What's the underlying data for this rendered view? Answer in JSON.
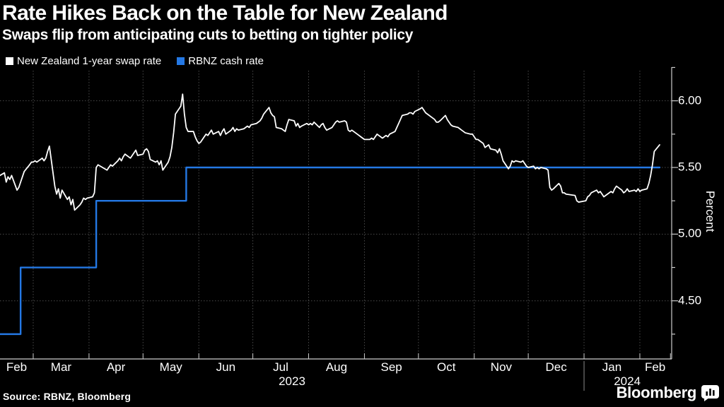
{
  "header": {
    "title": "Rate Hikes Back on the Table for New Zealand",
    "subtitle": "Swaps flip from anticipating cuts to betting on tighter policy"
  },
  "footer": {
    "source": "Source: RBNZ, Bloomberg",
    "brand": "Bloomberg",
    "brand_icon": "bar-chart-bubble-icon"
  },
  "chart_data": {
    "type": "line",
    "title": "Rate Hikes Back on the Table for New Zealand",
    "subtitle": "Swaps flip from anticipating cuts to betting on tighter policy",
    "ylabel": "Percent",
    "xlabel": "",
    "grid": true,
    "legend_position": "top-left",
    "ylim": [
      4.07,
      6.22
    ],
    "y_ticks_major": [
      4.5,
      5.0,
      5.5,
      6.0
    ],
    "y_ticks_minor": [
      4.25,
      4.75,
      5.25,
      5.75,
      6.25
    ],
    "x_range": [
      "2023-02-10",
      "2024-02-18"
    ],
    "x_month_labels": [
      "Feb",
      "Mar",
      "Apr",
      "May",
      "Jun",
      "Jul",
      "Aug",
      "Sep",
      "Oct",
      "Nov",
      "Dec",
      "Jan",
      "Feb"
    ],
    "x_month_starts": [
      "2023-02-10",
      "2023-03-01",
      "2023-04-01",
      "2023-05-01",
      "2023-06-01",
      "2023-07-01",
      "2023-08-01",
      "2023-09-01",
      "2023-10-01",
      "2023-11-01",
      "2023-12-01",
      "2024-01-01",
      "2024-02-01",
      "2024-02-18"
    ],
    "year_separator": "2024-01-01",
    "year_labels": [
      {
        "label": "2023",
        "span": [
          "2023-02-10",
          "2024-01-01"
        ]
      },
      {
        "label": "2024",
        "span": [
          "2024-01-01",
          "2024-02-18"
        ]
      }
    ],
    "colors": {
      "background": "#000000",
      "grid": "#4a4a4a",
      "axis": "#cccccc",
      "year_separator": "#8a8a8a",
      "swap_line": "#ffffff",
      "cash_line": "#2478e4"
    },
    "series": [
      {
        "name": "New Zealand 1-year swap rate",
        "color": "#ffffff",
        "style": "line",
        "points": [
          [
            "2023-02-10",
            5.44
          ],
          [
            "2023-02-13",
            5.46
          ],
          [
            "2023-02-14",
            5.39
          ],
          [
            "2023-02-15",
            5.43
          ],
          [
            "2023-02-16",
            5.41
          ],
          [
            "2023-02-17",
            5.44
          ],
          [
            "2023-02-20",
            5.33
          ],
          [
            "2023-02-21",
            5.35
          ],
          [
            "2023-02-22",
            5.39
          ],
          [
            "2023-02-23",
            5.43
          ],
          [
            "2023-02-24",
            5.47
          ],
          [
            "2023-02-27",
            5.52
          ],
          [
            "2023-02-28",
            5.54
          ],
          [
            "2023-03-01",
            5.54
          ],
          [
            "2023-03-02",
            5.55
          ],
          [
            "2023-03-03",
            5.54
          ],
          [
            "2023-03-06",
            5.57
          ],
          [
            "2023-03-07",
            5.55
          ],
          [
            "2023-03-08",
            5.57
          ],
          [
            "2023-03-09",
            5.62
          ],
          [
            "2023-03-10",
            5.66
          ],
          [
            "2023-03-13",
            5.36
          ],
          [
            "2023-03-14",
            5.3
          ],
          [
            "2023-03-15",
            5.34
          ],
          [
            "2023-03-16",
            5.27
          ],
          [
            "2023-03-17",
            5.33
          ],
          [
            "2023-03-20",
            5.26
          ],
          [
            "2023-03-21",
            5.28
          ],
          [
            "2023-03-22",
            5.22
          ],
          [
            "2023-03-23",
            5.26
          ],
          [
            "2023-03-24",
            5.18
          ],
          [
            "2023-03-27",
            5.22
          ],
          [
            "2023-03-28",
            5.24
          ],
          [
            "2023-03-29",
            5.27
          ],
          [
            "2023-03-30",
            5.26
          ],
          [
            "2023-03-31",
            5.27
          ],
          [
            "2023-04-03",
            5.28
          ],
          [
            "2023-04-04",
            5.31
          ],
          [
            "2023-04-05",
            5.5
          ],
          [
            "2023-04-06",
            5.52
          ],
          [
            "2023-04-11",
            5.48
          ],
          [
            "2023-04-12",
            5.5
          ],
          [
            "2023-04-13",
            5.52
          ],
          [
            "2023-04-14",
            5.51
          ],
          [
            "2023-04-17",
            5.55
          ],
          [
            "2023-04-18",
            5.57
          ],
          [
            "2023-04-19",
            5.55
          ],
          [
            "2023-04-20",
            5.58
          ],
          [
            "2023-04-21",
            5.6
          ],
          [
            "2023-04-24",
            5.57
          ],
          [
            "2023-04-26",
            5.61
          ],
          [
            "2023-04-27",
            5.63
          ],
          [
            "2023-04-28",
            5.59
          ],
          [
            "2023-05-01",
            5.6
          ],
          [
            "2023-05-02",
            5.63
          ],
          [
            "2023-05-03",
            5.64
          ],
          [
            "2023-05-04",
            5.62
          ],
          [
            "2023-05-05",
            5.56
          ],
          [
            "2023-05-08",
            5.54
          ],
          [
            "2023-05-09",
            5.55
          ],
          [
            "2023-05-10",
            5.52
          ],
          [
            "2023-05-11",
            5.55
          ],
          [
            "2023-05-12",
            5.48
          ],
          [
            "2023-05-15",
            5.54
          ],
          [
            "2023-05-16",
            5.58
          ],
          [
            "2023-05-17",
            5.65
          ],
          [
            "2023-05-18",
            5.76
          ],
          [
            "2023-05-19",
            5.9
          ],
          [
            "2023-05-22",
            5.96
          ],
          [
            "2023-05-23",
            6.05
          ],
          [
            "2023-05-24",
            5.9
          ],
          [
            "2023-05-25",
            5.8
          ],
          [
            "2023-05-26",
            5.77
          ],
          [
            "2023-05-29",
            5.77
          ],
          [
            "2023-05-30",
            5.73
          ],
          [
            "2023-05-31",
            5.7
          ],
          [
            "2023-06-01",
            5.68
          ],
          [
            "2023-06-02",
            5.69
          ],
          [
            "2023-06-05",
            5.75
          ],
          [
            "2023-06-06",
            5.74
          ],
          [
            "2023-06-07",
            5.76
          ],
          [
            "2023-06-08",
            5.78
          ],
          [
            "2023-06-09",
            5.75
          ],
          [
            "2023-06-12",
            5.77
          ],
          [
            "2023-06-13",
            5.74
          ],
          [
            "2023-06-14",
            5.77
          ],
          [
            "2023-06-15",
            5.79
          ],
          [
            "2023-06-16",
            5.75
          ],
          [
            "2023-06-19",
            5.78
          ],
          [
            "2023-06-20",
            5.8
          ],
          [
            "2023-06-21",
            5.77
          ],
          [
            "2023-06-22",
            5.79
          ],
          [
            "2023-06-23",
            5.78
          ],
          [
            "2023-06-26",
            5.79
          ],
          [
            "2023-06-27",
            5.8
          ],
          [
            "2023-06-28",
            5.81
          ],
          [
            "2023-06-29",
            5.8
          ],
          [
            "2023-06-30",
            5.82
          ],
          [
            "2023-07-03",
            5.83
          ],
          [
            "2023-07-04",
            5.84
          ],
          [
            "2023-07-05",
            5.85
          ],
          [
            "2023-07-06",
            5.87
          ],
          [
            "2023-07-07",
            5.9
          ],
          [
            "2023-07-10",
            5.95
          ],
          [
            "2023-07-11",
            5.91
          ],
          [
            "2023-07-12",
            5.89
          ],
          [
            "2023-07-13",
            5.88
          ],
          [
            "2023-07-14",
            5.8
          ],
          [
            "2023-07-17",
            5.79
          ],
          [
            "2023-07-18",
            5.78
          ],
          [
            "2023-07-19",
            5.77
          ],
          [
            "2023-07-20",
            5.82
          ],
          [
            "2023-07-21",
            5.86
          ],
          [
            "2023-07-24",
            5.85
          ],
          [
            "2023-07-25",
            5.81
          ],
          [
            "2023-07-26",
            5.83
          ],
          [
            "2023-07-27",
            5.8
          ],
          [
            "2023-07-28",
            5.81
          ],
          [
            "2023-07-31",
            5.83
          ],
          [
            "2023-08-01",
            5.82
          ],
          [
            "2023-08-02",
            5.83
          ],
          [
            "2023-08-03",
            5.82
          ],
          [
            "2023-08-04",
            5.84
          ],
          [
            "2023-08-07",
            5.8
          ],
          [
            "2023-08-08",
            5.82
          ],
          [
            "2023-08-09",
            5.83
          ],
          [
            "2023-08-10",
            5.8
          ],
          [
            "2023-08-11",
            5.78
          ],
          [
            "2023-08-14",
            5.8
          ],
          [
            "2023-08-15",
            5.82
          ],
          [
            "2023-08-16",
            5.84
          ],
          [
            "2023-08-17",
            5.85
          ],
          [
            "2023-08-18",
            5.84
          ],
          [
            "2023-08-21",
            5.85
          ],
          [
            "2023-08-22",
            5.84
          ],
          [
            "2023-08-23",
            5.78
          ],
          [
            "2023-08-24",
            5.77
          ],
          [
            "2023-08-25",
            5.78
          ],
          [
            "2023-08-28",
            5.75
          ],
          [
            "2023-08-29",
            5.74
          ],
          [
            "2023-08-30",
            5.73
          ],
          [
            "2023-08-31",
            5.72
          ],
          [
            "2023-09-01",
            5.71
          ],
          [
            "2023-09-04",
            5.71
          ],
          [
            "2023-09-05",
            5.72
          ],
          [
            "2023-09-06",
            5.71
          ],
          [
            "2023-09-07",
            5.73
          ],
          [
            "2023-09-08",
            5.75
          ],
          [
            "2023-09-11",
            5.72
          ],
          [
            "2023-09-12",
            5.73
          ],
          [
            "2023-09-13",
            5.74
          ],
          [
            "2023-09-14",
            5.73
          ],
          [
            "2023-09-15",
            5.75
          ],
          [
            "2023-09-18",
            5.77
          ],
          [
            "2023-09-19",
            5.8
          ],
          [
            "2023-09-20",
            5.83
          ],
          [
            "2023-09-21",
            5.86
          ],
          [
            "2023-09-22",
            5.89
          ],
          [
            "2023-09-25",
            5.9
          ],
          [
            "2023-09-26",
            5.91
          ],
          [
            "2023-09-27",
            5.91
          ],
          [
            "2023-09-28",
            5.9
          ],
          [
            "2023-09-29",
            5.92
          ],
          [
            "2023-10-02",
            5.94
          ],
          [
            "2023-10-03",
            5.95
          ],
          [
            "2023-10-04",
            5.93
          ],
          [
            "2023-10-05",
            5.91
          ],
          [
            "2023-10-06",
            5.9
          ],
          [
            "2023-10-09",
            5.87
          ],
          [
            "2023-10-10",
            5.86
          ],
          [
            "2023-10-11",
            5.84
          ],
          [
            "2023-10-12",
            5.84
          ],
          [
            "2023-10-13",
            5.85
          ],
          [
            "2023-10-16",
            5.89
          ],
          [
            "2023-10-17",
            5.86
          ],
          [
            "2023-10-18",
            5.84
          ],
          [
            "2023-10-19",
            5.82
          ],
          [
            "2023-10-20",
            5.81
          ],
          [
            "2023-10-23",
            5.8
          ],
          [
            "2023-10-24",
            5.79
          ],
          [
            "2023-10-25",
            5.78
          ],
          [
            "2023-10-26",
            5.77
          ],
          [
            "2023-10-27",
            5.76
          ],
          [
            "2023-10-30",
            5.75
          ],
          [
            "2023-10-31",
            5.75
          ],
          [
            "2023-11-01",
            5.73
          ],
          [
            "2023-11-02",
            5.71
          ],
          [
            "2023-11-03",
            5.71
          ],
          [
            "2023-11-06",
            5.68
          ],
          [
            "2023-11-07",
            5.65
          ],
          [
            "2023-11-08",
            5.66
          ],
          [
            "2023-11-09",
            5.67
          ],
          [
            "2023-11-10",
            5.64
          ],
          [
            "2023-11-13",
            5.63
          ],
          [
            "2023-11-14",
            5.61
          ],
          [
            "2023-11-15",
            5.64
          ],
          [
            "2023-11-16",
            5.6
          ],
          [
            "2023-11-17",
            5.55
          ],
          [
            "2023-11-20",
            5.49
          ],
          [
            "2023-11-21",
            5.51
          ],
          [
            "2023-11-22",
            5.55
          ],
          [
            "2023-11-23",
            5.54
          ],
          [
            "2023-11-24",
            5.55
          ],
          [
            "2023-11-27",
            5.54
          ],
          [
            "2023-11-28",
            5.55
          ],
          [
            "2023-11-29",
            5.53
          ],
          [
            "2023-11-30",
            5.51
          ],
          [
            "2023-12-01",
            5.5
          ],
          [
            "2023-12-04",
            5.51
          ],
          [
            "2023-12-05",
            5.49
          ],
          [
            "2023-12-06",
            5.5
          ],
          [
            "2023-12-07",
            5.49
          ],
          [
            "2023-12-08",
            5.5
          ],
          [
            "2023-12-11",
            5.49
          ],
          [
            "2023-12-12",
            5.48
          ],
          [
            "2023-12-13",
            5.35
          ],
          [
            "2023-12-14",
            5.33
          ],
          [
            "2023-12-15",
            5.34
          ],
          [
            "2023-12-18",
            5.38
          ],
          [
            "2023-12-19",
            5.36
          ],
          [
            "2023-12-20",
            5.31
          ],
          [
            "2023-12-21",
            5.31
          ],
          [
            "2023-12-22",
            5.3
          ],
          [
            "2023-12-27",
            5.29
          ],
          [
            "2023-12-28",
            5.25
          ],
          [
            "2023-12-29",
            5.24
          ],
          [
            "2024-01-02",
            5.25
          ],
          [
            "2024-01-03",
            5.28
          ],
          [
            "2024-01-04",
            5.29
          ],
          [
            "2024-01-05",
            5.31
          ],
          [
            "2024-01-08",
            5.33
          ],
          [
            "2024-01-09",
            5.31
          ],
          [
            "2024-01-10",
            5.32
          ],
          [
            "2024-01-11",
            5.3
          ],
          [
            "2024-01-12",
            5.28
          ],
          [
            "2024-01-15",
            5.31
          ],
          [
            "2024-01-16",
            5.32
          ],
          [
            "2024-01-17",
            5.31
          ],
          [
            "2024-01-18",
            5.34
          ],
          [
            "2024-01-19",
            5.36
          ],
          [
            "2024-01-22",
            5.33
          ],
          [
            "2024-01-23",
            5.31
          ],
          [
            "2024-01-24",
            5.32
          ],
          [
            "2024-01-25",
            5.34
          ],
          [
            "2024-01-26",
            5.32
          ],
          [
            "2024-01-29",
            5.33
          ],
          [
            "2024-01-30",
            5.32
          ],
          [
            "2024-01-31",
            5.34
          ],
          [
            "2024-02-01",
            5.32
          ],
          [
            "2024-02-02",
            5.33
          ],
          [
            "2024-02-05",
            5.34
          ],
          [
            "2024-02-06",
            5.38
          ],
          [
            "2024-02-07",
            5.44
          ],
          [
            "2024-02-08",
            5.52
          ],
          [
            "2024-02-09",
            5.62
          ],
          [
            "2024-02-12",
            5.67
          ]
        ]
      },
      {
        "name": "RBNZ cash rate",
        "color": "#2478e4",
        "style": "step",
        "points": [
          [
            "2023-02-10",
            4.25
          ],
          [
            "2023-02-22",
            4.75
          ],
          [
            "2023-04-05",
            5.25
          ],
          [
            "2023-05-25",
            5.5
          ],
          [
            "2024-02-12",
            5.5
          ]
        ]
      }
    ],
    "source": "Source: RBNZ, Bloomberg"
  }
}
